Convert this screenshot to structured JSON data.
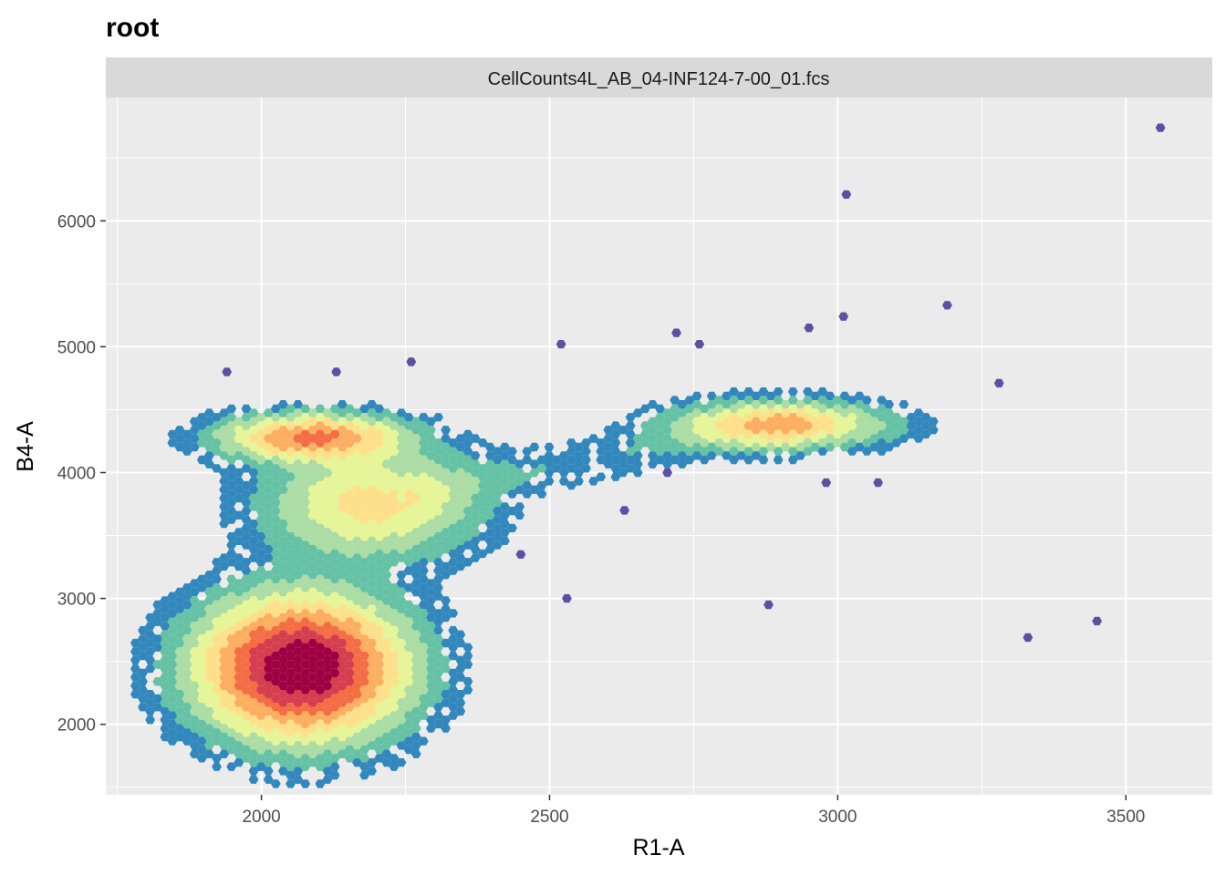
{
  "chart_data": {
    "type": "hexbin",
    "title": "root",
    "facet_label": "CellCounts4L_AB_04-INF124-7-00_01.fcs",
    "xlabel": "R1-A",
    "ylabel": "B4-A",
    "xlim": [
      1730,
      3650
    ],
    "ylim": [
      1440,
      6980
    ],
    "x_ticks": [
      2000,
      2500,
      3000,
      3500
    ],
    "y_ticks": [
      2000,
      3000,
      4000,
      5000,
      6000
    ],
    "x_tick_labels": [
      "2000",
      "2500",
      "3000",
      "3500"
    ],
    "y_tick_labels": [
      "2000",
      "3000",
      "4000",
      "5000",
      "6000"
    ],
    "grid": true,
    "color_scale": "Spectral (low = purple, high = red)",
    "colors": [
      "#5e4fa2",
      "#3288bd",
      "#66c2a5",
      "#abdda4",
      "#e6f598",
      "#fee08b",
      "#fdae61",
      "#f46d43",
      "#d53e4f",
      "#9e0142"
    ],
    "clusters": [
      {
        "name": "main-population",
        "cx": 2070,
        "cy": 2450,
        "sx": 105,
        "sy": 330,
        "peak": 1.0,
        "extent": 2.6
      },
      {
        "name": "upper-population",
        "cx": 2090,
        "cy": 4280,
        "sx": 95,
        "sy": 110,
        "peak": 0.55,
        "extent": 2.3
      },
      {
        "name": "bridge-population",
        "cx": 2190,
        "cy": 3750,
        "sx": 110,
        "sy": 260,
        "peak": 0.32,
        "extent": 2.0
      },
      {
        "name": "diagonal-population",
        "cx": 2900,
        "cy": 4380,
        "sx": 110,
        "sy": 110,
        "peak": 0.42,
        "extent": 2.3
      }
    ],
    "isolated_points": [
      [
        3560,
        6740
      ],
      [
        3015,
        6210
      ],
      [
        3010,
        5240
      ],
      [
        3190,
        5330
      ],
      [
        2950,
        5150
      ],
      [
        2520,
        5020
      ],
      [
        2720,
        5110
      ],
      [
        2760,
        5020
      ],
      [
        3280,
        4710
      ],
      [
        2880,
        2950
      ],
      [
        2530,
        3000
      ],
      [
        3330,
        2690
      ],
      [
        3450,
        2820
      ],
      [
        3070,
        3920
      ],
      [
        2980,
        3920
      ],
      [
        2630,
        3700
      ],
      [
        2450,
        3350
      ],
      [
        1940,
        4800
      ],
      [
        2130,
        4800
      ],
      [
        2260,
        4880
      ]
    ]
  }
}
